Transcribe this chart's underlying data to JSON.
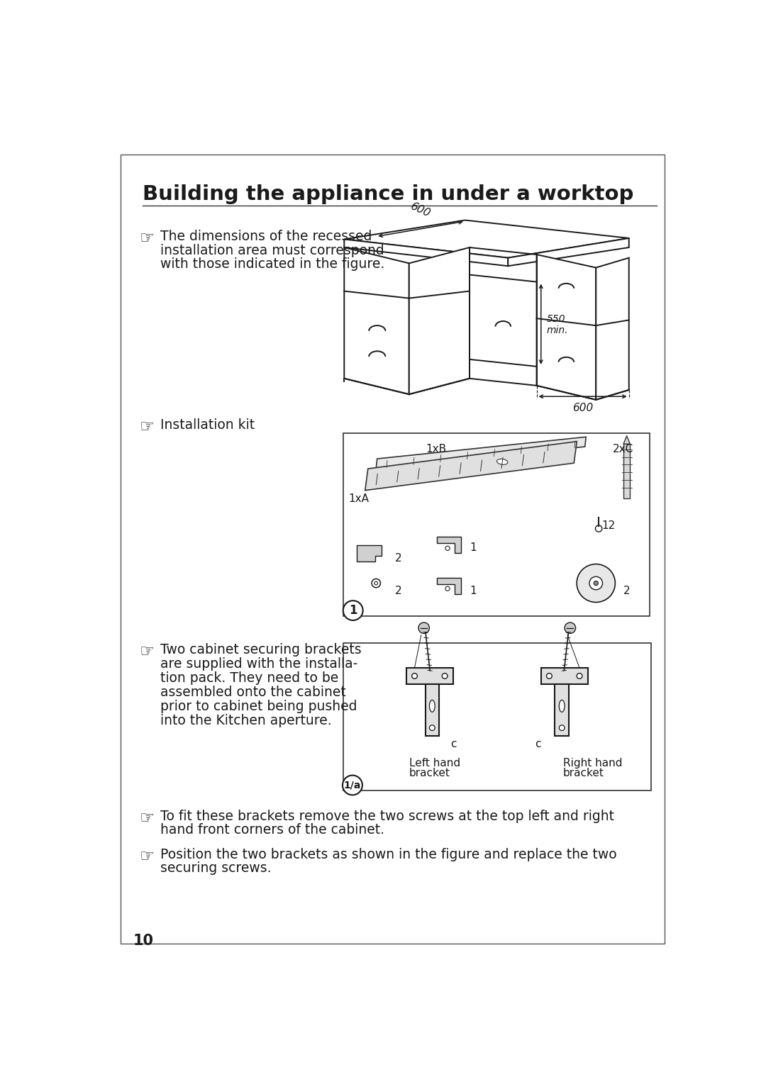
{
  "title": "Building the appliance in under a worktop",
  "page_number": "10",
  "bg_color": "#ffffff",
  "text_color": "#1a1a1a",
  "border_color": "#333333",
  "section1_text_line1": "The dimensions of the recessed",
  "section1_text_line2": "installation area must correspond",
  "section1_text_line3": "with those indicated in the figure.",
  "dim1": "600",
  "dim2": "550\nmin.",
  "dim3": "600",
  "section2_text": "Installation kit",
  "section3_text_line1": "Two cabinet securing brackets",
  "section3_text_line2": "are supplied with the installa-",
  "section3_text_line3": "tion pack. They need to be",
  "section3_text_line4": "assembled onto the cabinet",
  "section3_text_line5": "prior to cabinet being pushed",
  "section3_text_line6": "into the Kitchen aperture.",
  "bracket_label_left": "Left hand",
  "bracket_label_left2": "bracket",
  "bracket_label_right": "Right hand",
  "bracket_label_right2": "bracket",
  "bracket_number": "1/a",
  "section4_text_line1": "To fit these brackets remove the two screws at the top left and right",
  "section4_text_line2": "hand front corners of the cabinet.",
  "section5_text_line1": "Position the two brackets as shown in the figure and replace the two",
  "section5_text_line2": "securing screws.",
  "font_family": "DejaVu Sans",
  "title_fontsize": 21,
  "body_fontsize": 13.5,
  "small_fontsize": 11
}
